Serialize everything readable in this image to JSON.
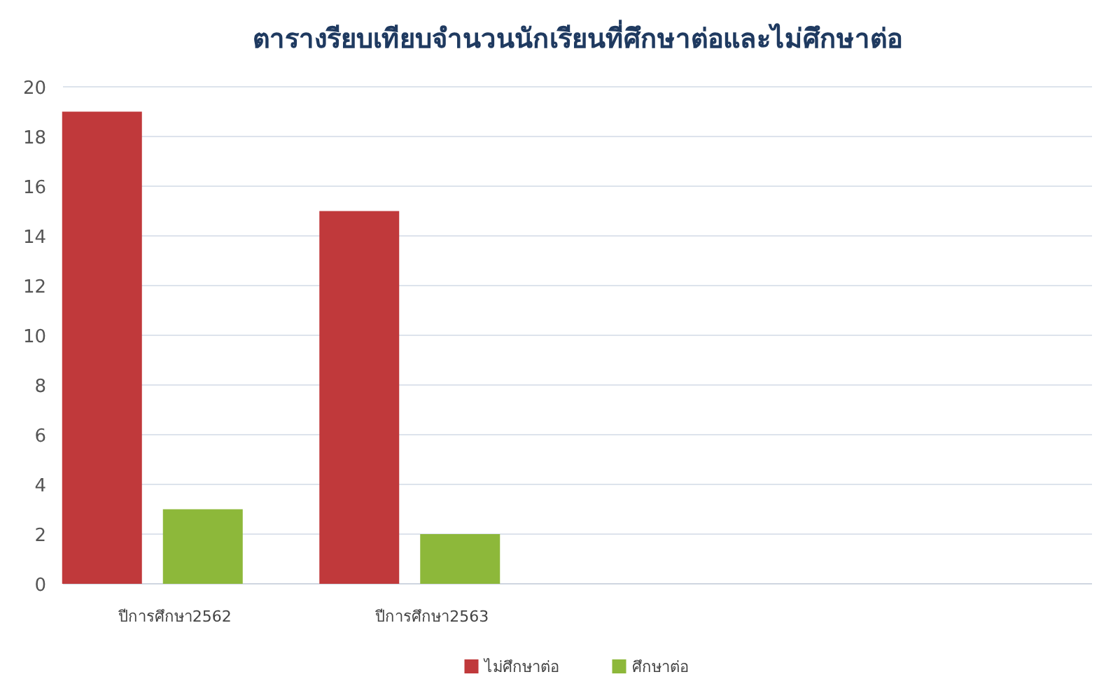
{
  "chart_data": {
    "type": "bar",
    "title": "ตารางรียบเทียบจำนวนนักเรียนที่ศึกษาต่อและไม่ศึกษาต่อ",
    "categories": [
      "ปีการศึกษา2562",
      "ปีการศึกษา2563",
      null,
      null
    ],
    "series": [
      {
        "name": "ไม่ศึกษาต่อ",
        "color": "#c0393b",
        "values": [
          19,
          15,
          null,
          null
        ]
      },
      {
        "name": "ศึกษาต่อ",
        "color": "#8db83a",
        "values": [
          3,
          2,
          null,
          null
        ]
      }
    ],
    "ylim": [
      0,
      20
    ],
    "yticks": [
      0,
      2,
      4,
      6,
      8,
      10,
      12,
      14,
      16,
      18,
      20
    ],
    "grid": "y",
    "legend": "bottom"
  }
}
